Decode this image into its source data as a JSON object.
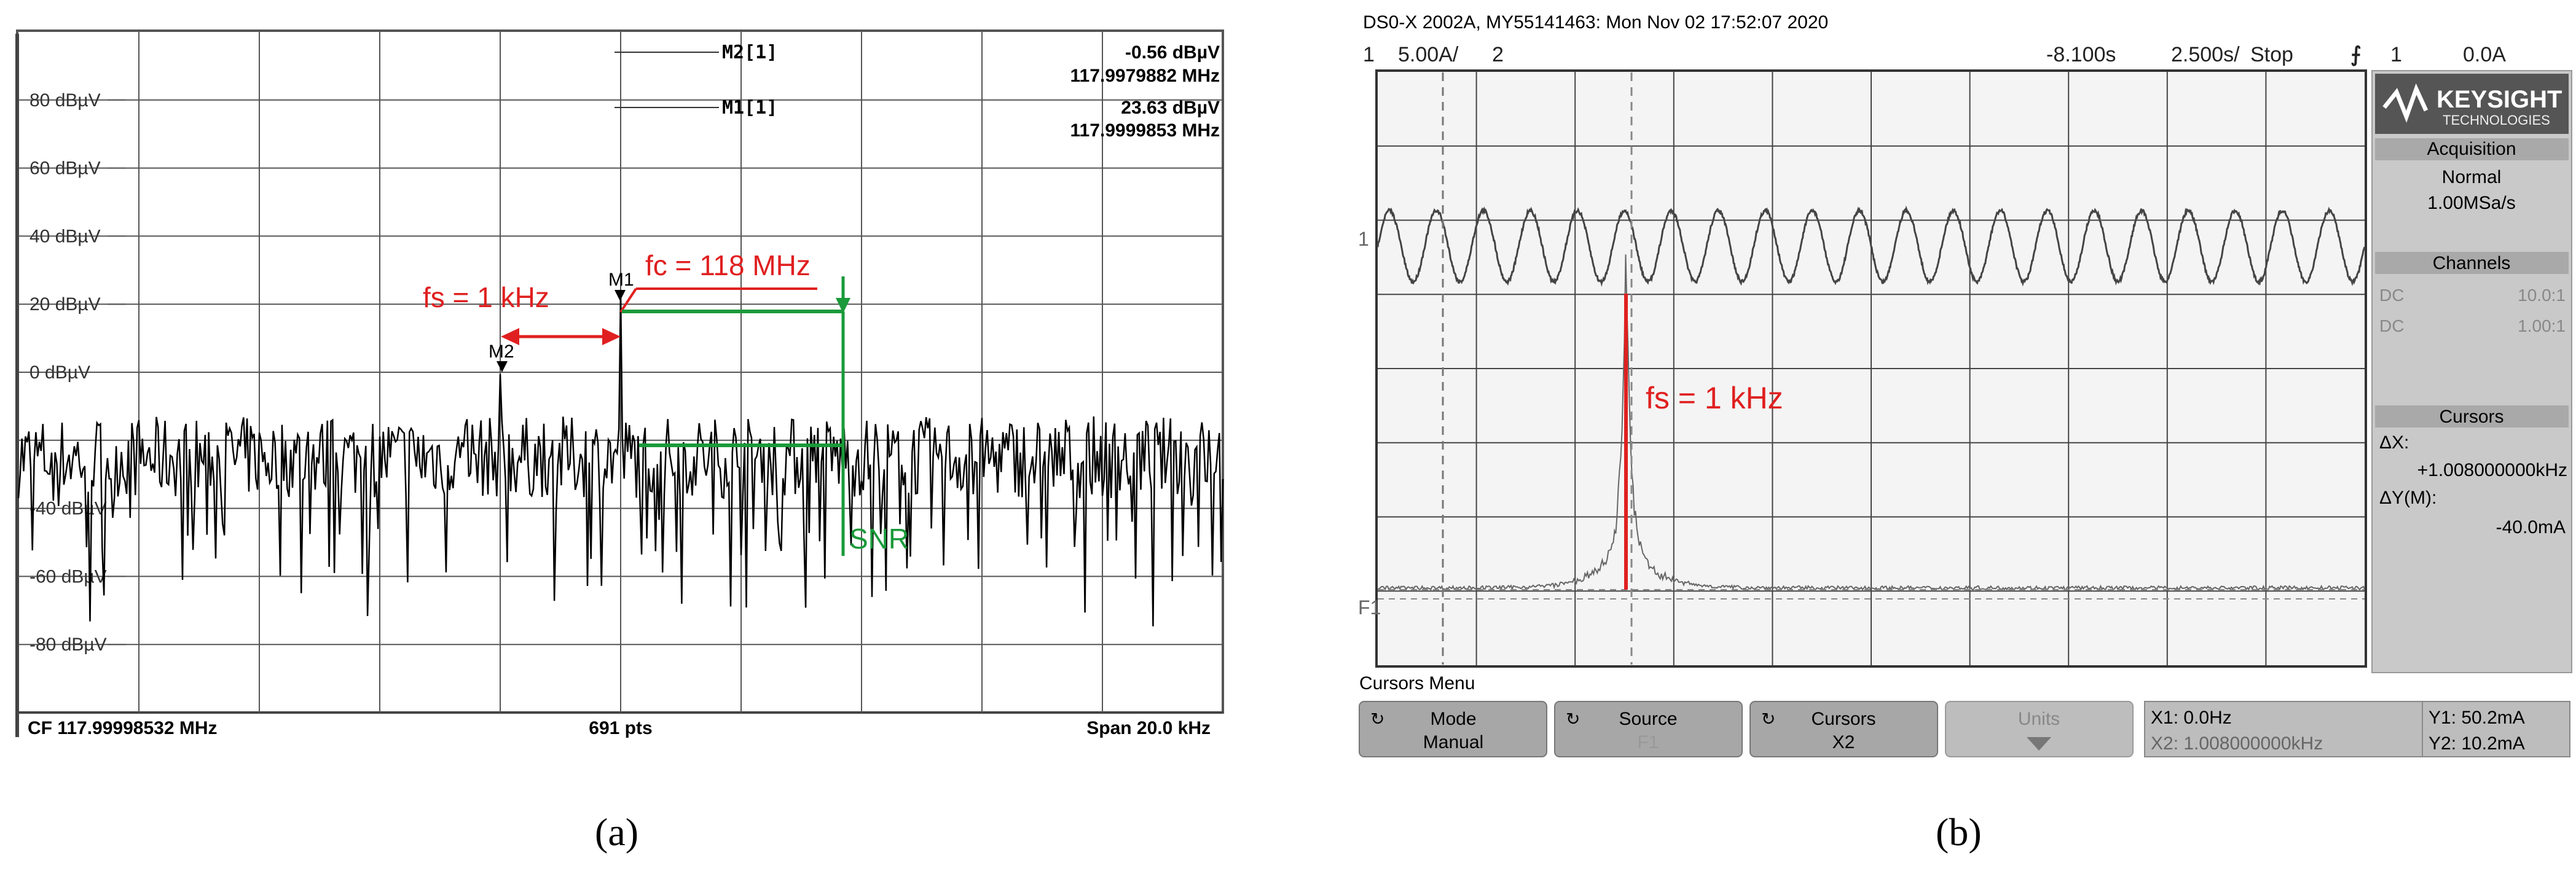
{
  "panel_a": {
    "label": "(a)",
    "y_ticks": [
      "80 dBµV",
      "60 dBµV",
      "40 dBµV",
      "20 dBµV",
      "0 dBµV",
      "-40 dBµV",
      "-60 dBµV",
      "-80 dBµV"
    ],
    "markers": {
      "m2": {
        "name": "M2[1]",
        "level": "-0.56 dBµV",
        "freq": "117.9979882 MHz"
      },
      "m1": {
        "name": "M1[1]",
        "level": "23.63 dBµV",
        "freq": "117.9999853 MHz"
      }
    },
    "marker_tags": {
      "m1": "M1",
      "m2": "M2"
    },
    "annotations": {
      "fs": "fs = 1 kHz",
      "fc": "fc = 118 MHz",
      "snr": "SNR"
    },
    "footer": {
      "cf": "CF 117.99998532 MHz",
      "pts": "691 pts",
      "span": "Span 20.0 kHz"
    },
    "colors": {
      "annotation_red": "#e02020",
      "annotation_green": "#1a9a3a",
      "trace": "#000000"
    }
  },
  "panel_b": {
    "label": "(b)",
    "header": "DS0-X 2002A, MY55141463: Mon Nov 02 17:52:07 2020",
    "topbar": {
      "ch1": "1",
      "ch1_scale": "5.00A/",
      "ch2": "2",
      "time_offset": "-8.100s",
      "time_scale": "2.500s/",
      "run_state": "Stop",
      "trig_ch": "1",
      "trig_level": "0.0A"
    },
    "brand": {
      "name": "KEYSIGHT",
      "sub": "TECHNOLOGIES"
    },
    "acquisition": {
      "title": "Acquisition",
      "mode": "Normal",
      "rate": "1.00MSa/s"
    },
    "channels": {
      "title": "Channels",
      "rows": [
        {
          "coupling": "DC",
          "ratio": "10.0:1"
        },
        {
          "coupling": "DC",
          "ratio": "1.00:1"
        }
      ]
    },
    "cursors": {
      "title": "Cursors",
      "dx_label": "ΔX:",
      "dx_value": "+1.008000000kHz",
      "dy_label": "ΔY(M):",
      "dy_value": "-40.0mA"
    },
    "menu_title": "Cursors Menu",
    "softkeys": [
      {
        "label": "Mode",
        "value": "Manual"
      },
      {
        "label": "Source",
        "value": "F1"
      },
      {
        "label": "Cursors",
        "value": "X2"
      },
      {
        "label": "Units",
        "value": ""
      }
    ],
    "readout": {
      "x1": "X1: 0.0Hz",
      "x2": "X2: 1.008000000kHz",
      "y1": "Y1: 50.2mA",
      "y2": "Y2: 10.2mA"
    },
    "annotation": "fs = 1 kHz",
    "ch_labels": {
      "ch1": "1",
      "math": "F1"
    }
  },
  "chart_data": [
    {
      "type": "line",
      "panel": "a",
      "y_unit": "dBµV",
      "ylim": [
        -100,
        100
      ],
      "x_points": 691,
      "xlim_khz": [
        -10,
        10
      ],
      "noise_floor_db": -25,
      "grid": true,
      "peaks": [
        {
          "marker": "M2",
          "x_khz": -2.0,
          "level_db": -0.56
        },
        {
          "marker": "M1",
          "x_khz": 0.0,
          "level_db": 23.63
        }
      ]
    },
    {
      "type": "line",
      "panel": "b",
      "grid": true,
      "series": [
        {
          "name": "1",
          "description_shape": "sine",
          "cycles": 21
        },
        {
          "name": "F1",
          "description_shape": "spectrum",
          "peak_x_khz": 1.008
        }
      ],
      "cursors": {
        "x1_hz": 0.0,
        "x2_khz": 1.008,
        "y1_ma": 50.2,
        "y2_ma": 10.2
      }
    }
  ]
}
